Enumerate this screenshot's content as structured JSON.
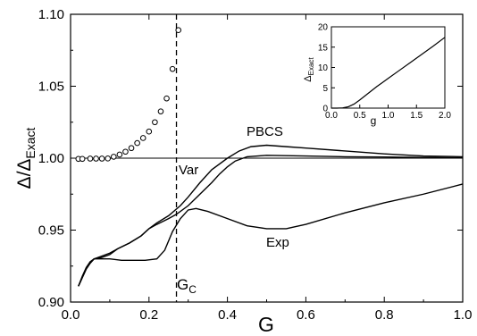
{
  "chart_data": {
    "type": "line",
    "xlabel": "G",
    "ylabel": "Δ/Δ",
    "ylabel_sub": "Exact",
    "xlim": [
      0.0,
      1.0
    ],
    "ylim": [
      0.9,
      1.1
    ],
    "xticks": [
      "0.0",
      "0.2",
      "0.4",
      "0.6",
      "0.8",
      "1.0"
    ],
    "yticks": [
      "0.90",
      "0.95",
      "1.00",
      "1.05",
      "1.10"
    ],
    "reference_line": {
      "y": 1.0
    },
    "critical_line": {
      "x": 0.27,
      "label": "G",
      "label_sub": "C",
      "style": "dashed"
    },
    "series": [
      {
        "name": "PBCS",
        "style": "solid",
        "points": [
          [
            0.02,
            0.911
          ],
          [
            0.03,
            0.917
          ],
          [
            0.04,
            0.923
          ],
          [
            0.05,
            0.927
          ],
          [
            0.06,
            0.93
          ],
          [
            0.08,
            0.932
          ],
          [
            0.1,
            0.934
          ],
          [
            0.12,
            0.937
          ],
          [
            0.15,
            0.941
          ],
          [
            0.18,
            0.946
          ],
          [
            0.2,
            0.951
          ],
          [
            0.22,
            0.955
          ],
          [
            0.25,
            0.96
          ],
          [
            0.28,
            0.967
          ],
          [
            0.3,
            0.973
          ],
          [
            0.33,
            0.983
          ],
          [
            0.36,
            0.992
          ],
          [
            0.4,
            1.0
          ],
          [
            0.43,
            1.005
          ],
          [
            0.46,
            1.008
          ],
          [
            0.5,
            1.009
          ],
          [
            0.55,
            1.008
          ],
          [
            0.6,
            1.007
          ],
          [
            0.7,
            1.005
          ],
          [
            0.8,
            1.003
          ],
          [
            0.9,
            1.0015
          ],
          [
            1.0,
            1.001
          ]
        ]
      },
      {
        "name": "Var",
        "style": "solid",
        "points": [
          [
            0.02,
            0.911
          ],
          [
            0.03,
            0.917
          ],
          [
            0.04,
            0.923
          ],
          [
            0.05,
            0.927
          ],
          [
            0.06,
            0.93
          ],
          [
            0.08,
            0.931
          ],
          [
            0.1,
            0.933
          ],
          [
            0.12,
            0.937
          ],
          [
            0.15,
            0.941
          ],
          [
            0.18,
            0.946
          ],
          [
            0.2,
            0.951
          ],
          [
            0.22,
            0.954
          ],
          [
            0.25,
            0.958
          ],
          [
            0.27,
            0.961
          ],
          [
            0.3,
            0.967
          ],
          [
            0.33,
            0.975
          ],
          [
            0.36,
            0.983
          ],
          [
            0.38,
            0.989
          ],
          [
            0.4,
            0.994
          ],
          [
            0.42,
            0.998
          ],
          [
            0.45,
            1.001
          ],
          [
            0.5,
            1.002
          ],
          [
            0.6,
            1.0015
          ],
          [
            0.7,
            1.001
          ],
          [
            0.8,
            1.0008
          ],
          [
            0.9,
            1.0005
          ],
          [
            1.0,
            1.0003
          ]
        ]
      },
      {
        "name": "Exp",
        "style": "solid",
        "points": [
          [
            0.02,
            0.911
          ],
          [
            0.03,
            0.918
          ],
          [
            0.04,
            0.924
          ],
          [
            0.05,
            0.928
          ],
          [
            0.06,
            0.93
          ],
          [
            0.08,
            0.93
          ],
          [
            0.1,
            0.93
          ],
          [
            0.13,
            0.929
          ],
          [
            0.16,
            0.929
          ],
          [
            0.19,
            0.929
          ],
          [
            0.22,
            0.93
          ],
          [
            0.24,
            0.936
          ],
          [
            0.26,
            0.949
          ],
          [
            0.28,
            0.958
          ],
          [
            0.3,
            0.964
          ],
          [
            0.32,
            0.965
          ],
          [
            0.35,
            0.963
          ],
          [
            0.4,
            0.958
          ],
          [
            0.45,
            0.953
          ],
          [
            0.5,
            0.951
          ],
          [
            0.55,
            0.951
          ],
          [
            0.6,
            0.954
          ],
          [
            0.7,
            0.962
          ],
          [
            0.8,
            0.969
          ],
          [
            0.9,
            0.975
          ],
          [
            1.0,
            0.982
          ]
        ]
      },
      {
        "name": "",
        "style": "markers",
        "marker": "open-circle",
        "points": [
          [
            0.02,
            0.9995
          ],
          [
            0.03,
            0.9995
          ],
          [
            0.05,
            0.9997
          ],
          [
            0.065,
            0.9997
          ],
          [
            0.08,
            0.9997
          ],
          [
            0.095,
            0.9998
          ],
          [
            0.11,
            1.001
          ],
          [
            0.125,
            1.0025
          ],
          [
            0.14,
            1.0045
          ],
          [
            0.155,
            1.007
          ],
          [
            0.17,
            1.0105
          ],
          [
            0.185,
            1.014
          ],
          [
            0.2,
            1.0185
          ],
          [
            0.215,
            1.025
          ],
          [
            0.23,
            1.0325
          ],
          [
            0.245,
            1.0415
          ],
          [
            0.26,
            1.062
          ],
          [
            0.275,
            1.089
          ]
        ]
      }
    ],
    "inset": {
      "type": "line",
      "xlabel": "g",
      "ylabel": "Δ",
      "ylabel_sub": "Exact",
      "xlim": [
        0.0,
        2.0
      ],
      "ylim": [
        0,
        20
      ],
      "xticks": [
        "0.0",
        "0.5",
        "1.0",
        "1.5",
        "2.0"
      ],
      "yticks": [
        "0",
        "5",
        "10",
        "15",
        "20"
      ],
      "points": [
        [
          0.0,
          0.0
        ],
        [
          0.1,
          0.0
        ],
        [
          0.2,
          0.05
        ],
        [
          0.3,
          0.35
        ],
        [
          0.4,
          1.0
        ],
        [
          0.5,
          2.0
        ],
        [
          0.6,
          3.1
        ],
        [
          0.7,
          4.2
        ],
        [
          0.8,
          5.3
        ],
        [
          0.9,
          6.3
        ],
        [
          1.0,
          7.3
        ],
        [
          1.2,
          9.3
        ],
        [
          1.4,
          11.3
        ],
        [
          1.6,
          13.3
        ],
        [
          1.8,
          15.3
        ],
        [
          2.0,
          17.4
        ]
      ]
    }
  }
}
